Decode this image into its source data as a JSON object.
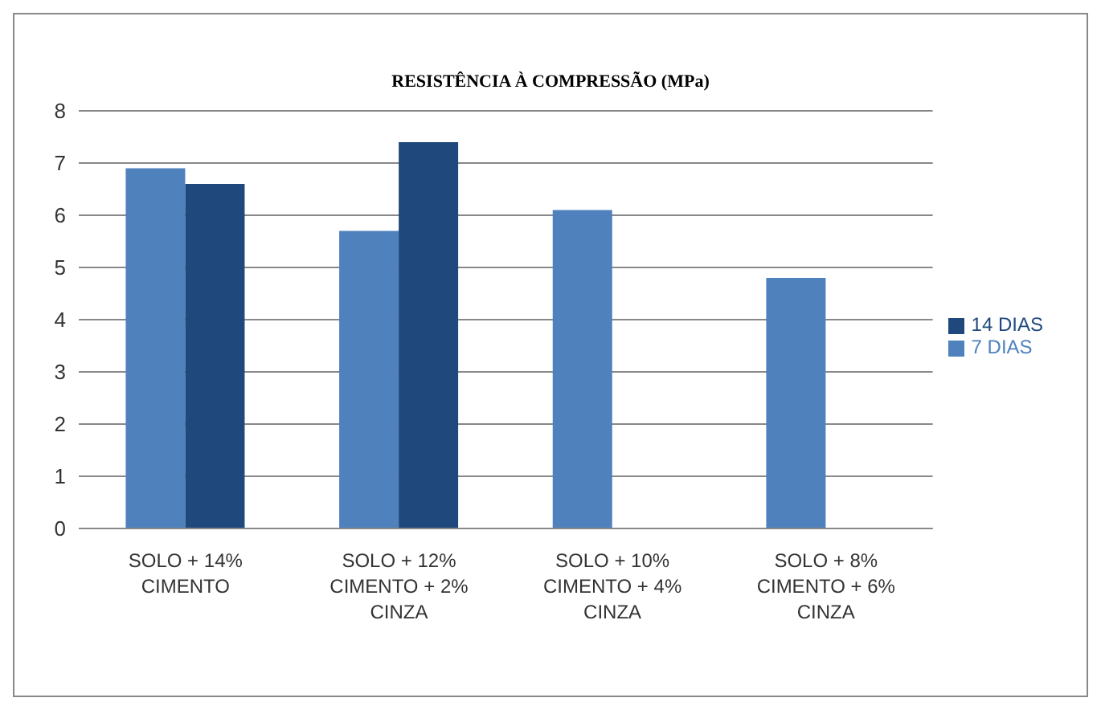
{
  "chart_data": {
    "type": "bar",
    "title": "RESISTÊNCIA À COMPRESSÃO (MPa)",
    "categories": [
      "SOLO + 14% CIMENTO",
      "SOLO + 12% CIMENTO + 2% CINZA",
      "SOLO + 10% CIMENTO + 4% CINZA",
      "SOLO + 8% CIMENTO + 6% CINZA"
    ],
    "series": [
      {
        "name": "7 DIAS",
        "color": "#4f81bd",
        "values": [
          6.9,
          5.7,
          6.1,
          4.8
        ]
      },
      {
        "name": "14 DIAS",
        "color": "#1f497d",
        "values": [
          6.6,
          7.4,
          null,
          null
        ]
      }
    ],
    "ylim": [
      0,
      8
    ],
    "yticks": [
      0,
      1,
      2,
      3,
      4,
      5,
      6,
      7,
      8
    ],
    "grid": "y",
    "legend": "right"
  }
}
